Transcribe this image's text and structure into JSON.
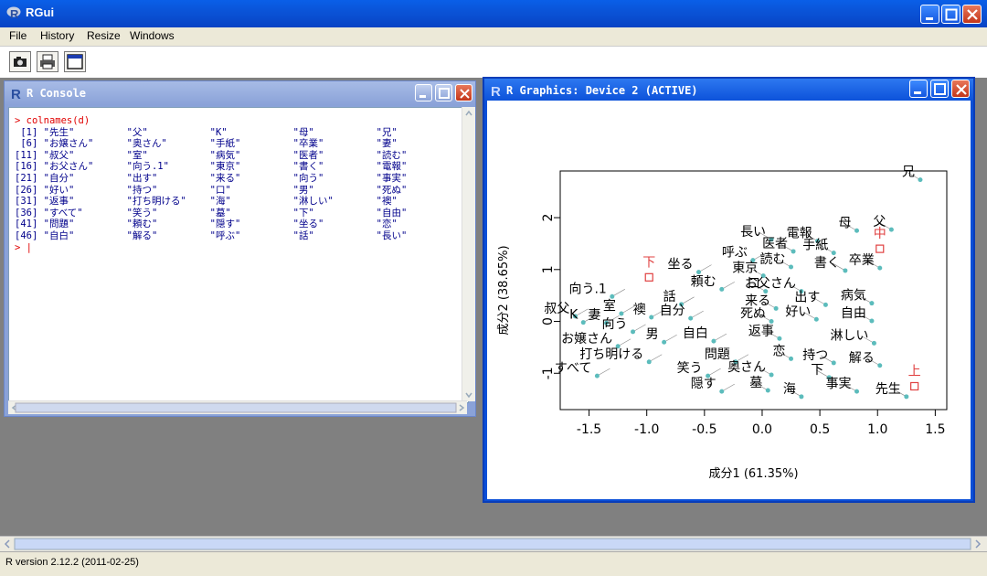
{
  "app": {
    "title": "RGui"
  },
  "menu": {
    "file": "File",
    "history": "History",
    "resize": "Resize",
    "windows": "Windows"
  },
  "toolbar": {
    "icons": [
      "camera-icon",
      "printer-icon",
      "window-icon"
    ]
  },
  "console": {
    "title": "R Console",
    "command": "colnames(d)",
    "rows": [
      {
        "idx": " [1]",
        "v": [
          "\"先生\"",
          "\"父\"",
          "\"K\"",
          "\"母\"",
          "\"兄\""
        ]
      },
      {
        "idx": " [6]",
        "v": [
          "\"お嬢さん\"",
          "\"奥さん\"",
          "\"手紙\"",
          "\"卒業\"",
          "\"妻\""
        ]
      },
      {
        "idx": "[11]",
        "v": [
          "\"叔父\"",
          "\"室\"",
          "\"病気\"",
          "\"医者\"",
          "\"読む\""
        ]
      },
      {
        "idx": "[16]",
        "v": [
          "\"お父さん\"",
          "\"向う.1\"",
          "\"東京\"",
          "\"書く\"",
          "\"電報\""
        ]
      },
      {
        "idx": "[21]",
        "v": [
          "\"自分\"",
          "\"出す\"",
          "\"来る\"",
          "\"向う\"",
          "\"事実\""
        ]
      },
      {
        "idx": "[26]",
        "v": [
          "\"好い\"",
          "\"持つ\"",
          "\"口\"",
          "\"男\"",
          "\"死ぬ\""
        ]
      },
      {
        "idx": "[31]",
        "v": [
          "\"返事\"",
          "\"打ち明ける\"",
          "\"海\"",
          "\"淋しい\"",
          "\"襖\""
        ]
      },
      {
        "idx": "[36]",
        "v": [
          "\"すべて\"",
          "\"笑う\"",
          "\"墓\"",
          "\"下\"",
          "\"自由\""
        ]
      },
      {
        "idx": "[41]",
        "v": [
          "\"問題\"",
          "\"頼む\"",
          "\"隠す\"",
          "\"坐る\"",
          "\"恋\""
        ]
      },
      {
        "idx": "[46]",
        "v": [
          "\"自白\"",
          "\"解る\"",
          "\"呼ぶ\"",
          "\"話\"",
          "\"長い\""
        ]
      }
    ]
  },
  "graphics": {
    "title": "R Graphics: Device 2 (ACTIVE)"
  },
  "chart_data": {
    "type": "scatter",
    "xlabel": "成分1 (61.35%)",
    "ylabel": "成分2 (38.65%)",
    "xlim": [
      -1.75,
      1.6
    ],
    "ylim": [
      -1.7,
      2.9
    ],
    "xticks": [
      -1.5,
      -1.0,
      -0.5,
      0.0,
      0.5,
      1.0,
      1.5
    ],
    "xtick_labels": [
      "-1.5",
      "-1.0",
      "-0.5",
      "0.0",
      "0.5",
      "1.0",
      "1.5"
    ],
    "yticks": [
      -1,
      0,
      1,
      2
    ],
    "ytick_labels": [
      "-1",
      "0",
      "1",
      "2"
    ],
    "point_color": "#5cbcbc",
    "marker_color": "#e04040",
    "points": [
      {
        "label": "兄",
        "x": 1.37,
        "y": 2.73
      },
      {
        "label": "父",
        "x": 1.12,
        "y": 1.77
      },
      {
        "label": "長い",
        "x": 0.08,
        "y": 1.58
      },
      {
        "label": "電報",
        "x": 0.48,
        "y": 1.55
      },
      {
        "label": "母",
        "x": 0.82,
        "y": 1.75
      },
      {
        "label": "呼ぶ",
        "x": -0.08,
        "y": 1.18
      },
      {
        "label": "医者",
        "x": 0.27,
        "y": 1.35
      },
      {
        "label": "手紙",
        "x": 0.62,
        "y": 1.32
      },
      {
        "label": "坐る",
        "x": -0.55,
        "y": 0.95
      },
      {
        "label": "東京",
        "x": 0.01,
        "y": 0.88
      },
      {
        "label": "読む",
        "x": 0.25,
        "y": 1.05
      },
      {
        "label": "書く",
        "x": 0.72,
        "y": 0.98
      },
      {
        "label": "卒業",
        "x": 1.02,
        "y": 1.03
      },
      {
        "label": "頼む",
        "x": -0.35,
        "y": 0.62
      },
      {
        "label": "口",
        "x": 0.03,
        "y": 0.58
      },
      {
        "label": "お父さん",
        "x": 0.34,
        "y": 0.58
      },
      {
        "label": "向う.1",
        "x": -1.3,
        "y": 0.48
      },
      {
        "label": "話",
        "x": -0.7,
        "y": 0.33
      },
      {
        "label": "来る",
        "x": 0.12,
        "y": 0.25
      },
      {
        "label": "出す",
        "x": 0.55,
        "y": 0.32
      },
      {
        "label": "病気",
        "x": 0.95,
        "y": 0.35
      },
      {
        "label": "叔父",
        "x": -1.62,
        "y": 0.1
      },
      {
        "label": "室",
        "x": -1.22,
        "y": 0.15
      },
      {
        "label": "襖",
        "x": -0.96,
        "y": 0.08
      },
      {
        "label": "自分",
        "x": -0.62,
        "y": 0.06
      },
      {
        "label": "死ぬ",
        "x": 0.08,
        "y": 0.0
      },
      {
        "label": "好い",
        "x": 0.47,
        "y": 0.04
      },
      {
        "label": "自由",
        "x": 0.95,
        "y": 0.01
      },
      {
        "label": "K",
        "x": -1.55,
        "y": -0.02
      },
      {
        "label": "妻",
        "x": -1.35,
        "y": -0.03
      },
      {
        "label": "向う",
        "x": -1.12,
        "y": -0.2
      },
      {
        "label": "お嬢さん",
        "x": -1.25,
        "y": -0.48
      },
      {
        "label": "返事",
        "x": 0.15,
        "y": -0.33
      },
      {
        "label": "男",
        "x": -0.85,
        "y": -0.4
      },
      {
        "label": "自白",
        "x": -0.42,
        "y": -0.38
      },
      {
        "label": "淋しい",
        "x": 0.97,
        "y": -0.42
      },
      {
        "label": "打ち明ける",
        "x": -0.98,
        "y": -0.78
      },
      {
        "label": "問題",
        "x": -0.23,
        "y": -0.78
      },
      {
        "label": "恋",
        "x": 0.25,
        "y": -0.72
      },
      {
        "label": "持つ",
        "x": 0.62,
        "y": -0.8
      },
      {
        "label": "解る",
        "x": 1.02,
        "y": -0.85
      },
      {
        "label": "すべて",
        "x": -1.43,
        "y": -1.05
      },
      {
        "label": "笑う",
        "x": -0.47,
        "y": -1.05
      },
      {
        "label": "奥さん",
        "x": 0.08,
        "y": -1.03
      },
      {
        "label": "下",
        "x": 0.58,
        "y": -1.08
      },
      {
        "label": "隠す",
        "x": -0.35,
        "y": -1.35
      },
      {
        "label": "墓",
        "x": 0.05,
        "y": -1.33
      },
      {
        "label": "海",
        "x": 0.34,
        "y": -1.45
      },
      {
        "label": "事実",
        "x": 0.82,
        "y": -1.35
      },
      {
        "label": "先生",
        "x": 1.25,
        "y": -1.45
      }
    ],
    "markers": [
      {
        "label": "下",
        "x": -0.98,
        "y": 0.85
      },
      {
        "label": "中",
        "x": 1.02,
        "y": 1.4
      },
      {
        "label": "上",
        "x": 1.32,
        "y": -1.25
      }
    ]
  },
  "status": {
    "text": "R version 2.12.2 (2011-02-25)"
  }
}
